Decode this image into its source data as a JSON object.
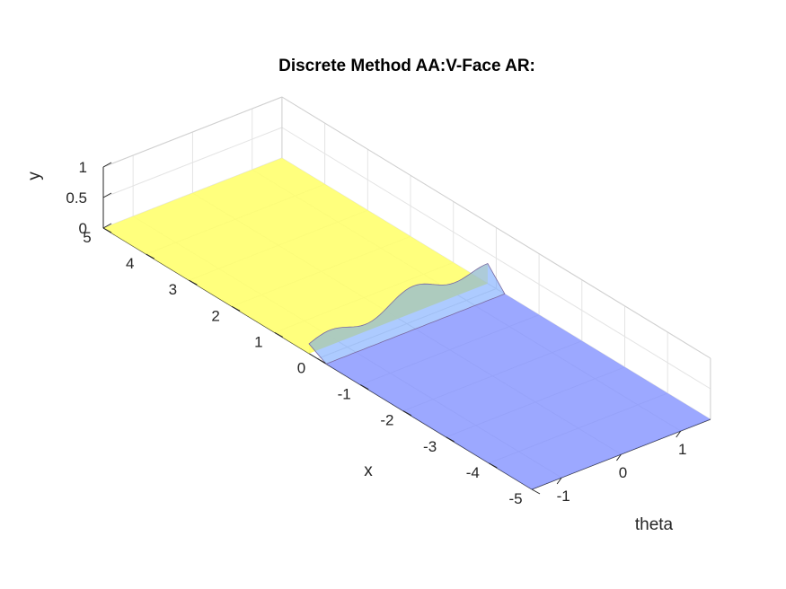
{
  "chart_data": {
    "type": "surface",
    "title": "Discrete Method AA:V-Face AR:",
    "xlabel": "x",
    "ylabel": "theta",
    "zlabel": "y",
    "xlim": [
      -5,
      5
    ],
    "ylim": [
      -1.5,
      1.5
    ],
    "zlim": [
      0,
      1
    ],
    "x_ticks": [
      "-5",
      "-4",
      "-3",
      "-2",
      "-1",
      "0",
      "1",
      "2",
      "3",
      "4",
      "5"
    ],
    "y_ticks": [
      "-1",
      "0",
      "1"
    ],
    "z_ticks": [
      "0",
      "0.5",
      "1"
    ],
    "grid": true,
    "series": [
      {
        "color": "#ffff66",
        "x_range": [
          0.2,
          5
        ],
        "theta_range": [
          -1.5,
          1.5
        ],
        "height": 0
      },
      {
        "color": "#8090ff",
        "x_range": [
          -5,
          0.2
        ],
        "theta_range": [
          -1.5,
          1.5
        ],
        "height": 0
      }
    ],
    "transition_x": 0.2,
    "transition_height_peak": 0.45
  }
}
